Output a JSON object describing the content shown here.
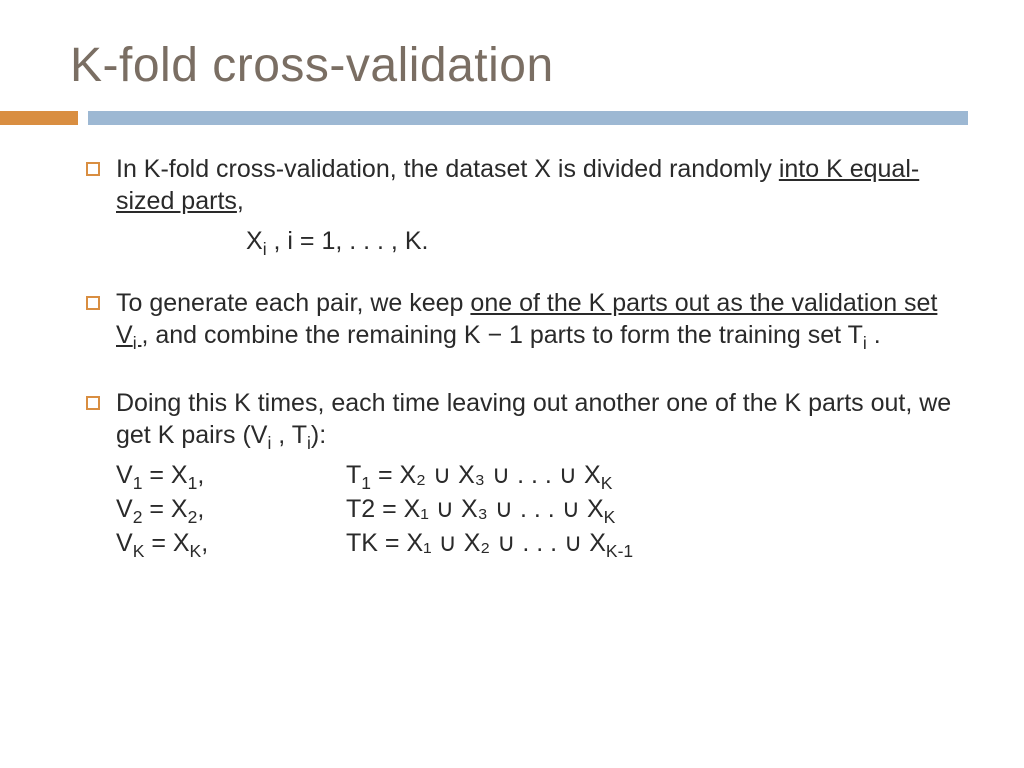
{
  "title": "K-fold cross-validation",
  "colors": {
    "title_text": "#7a6e63",
    "rule_orange": "#d98e41",
    "rule_blue": "#9db8d3",
    "body_text": "#2a2a2a",
    "background": "#ffffff"
  },
  "typography": {
    "title_fontsize": 48,
    "body_fontsize": 25,
    "font_family": "Segoe UI"
  },
  "bullets": [
    {
      "pre": "In K-fold cross-validation, the dataset X is divided randomly ",
      "underline": "into K equal-sized parts",
      "post": ","
    },
    {
      "pre": "To generate each pair, we keep ",
      "underline": "one of the K parts out as the validation set V",
      "underline_sub": "i ",
      "post1": ", and combine the remaining K − 1 parts to form the training set T",
      "post_sub": "i",
      "post2": " ."
    },
    {
      "pre": "Doing this K times, each time leaving out another one of the K parts out, we get K pairs (V",
      "sub1": "i",
      "mid": " , T",
      "sub2": "i",
      "post": "):"
    }
  ],
  "formula": {
    "lhs": "X",
    "lhs_sub": "i",
    "rhs": " , i = 1, . . . , K."
  },
  "equations": [
    {
      "lhs_sym": "V",
      "lhs_sub": "1",
      "lhs_eq": " = X",
      "lhs_sub2": "1",
      "lhs_tail": ",",
      "rhs_sym": " T",
      "rhs_sub": "1",
      "rhs": " = X₂ ∪ X₃ ∪ . . . ∪ X",
      "rhs_sub_end": "K"
    },
    {
      "lhs_sym": "V",
      "lhs_sub": "2",
      "lhs_eq": " = X",
      "lhs_sub2": "2",
      "lhs_tail": ",",
      "rhs_sym": "T2",
      "rhs_sub": "",
      "rhs": " = X₁ ∪ X₃ ∪ . . . ∪ X",
      "rhs_sub_end": "K"
    },
    {
      "lhs_sym": "V",
      "lhs_sub": "K",
      "lhs_eq": " = X",
      "lhs_sub2": "K",
      "lhs_tail": ",",
      "rhs_sym": "TK",
      "rhs_sub": "",
      "rhs": " = X₁ ∪ X₂ ∪ . . . ∪ X",
      "rhs_sub_end": "K-1"
    }
  ]
}
